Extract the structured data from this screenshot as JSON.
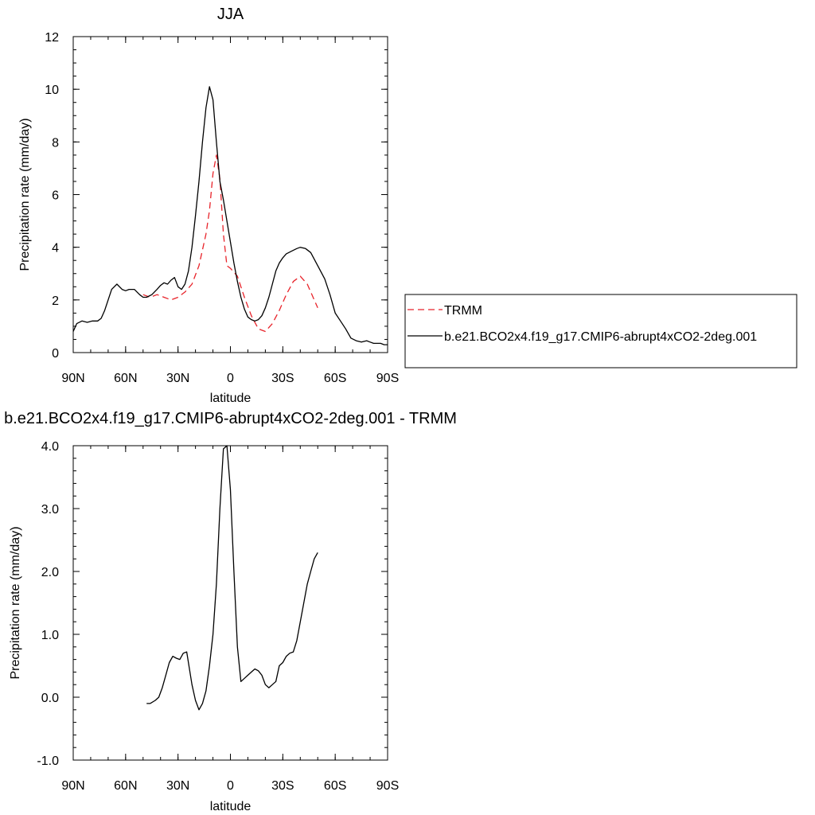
{
  "chart_data": [
    {
      "type": "line",
      "title": "JJA",
      "xlabel": "latitude",
      "ylabel": "Precipitation rate (mm/day)",
      "xlim": [
        90,
        -90
      ],
      "ylim": [
        0,
        12
      ],
      "x_ticks": [
        {
          "value": 90,
          "label": "90N"
        },
        {
          "value": 60,
          "label": "60N"
        },
        {
          "value": 30,
          "label": "30N"
        },
        {
          "value": 0,
          "label": "0"
        },
        {
          "value": -30,
          "label": "30S"
        },
        {
          "value": -60,
          "label": "60S"
        },
        {
          "value": -90,
          "label": "90S"
        }
      ],
      "y_ticks": [
        {
          "value": 0,
          "label": "0"
        },
        {
          "value": 2,
          "label": "2"
        },
        {
          "value": 4,
          "label": "4"
        },
        {
          "value": 6,
          "label": "6"
        },
        {
          "value": 8,
          "label": "8"
        },
        {
          "value": 10,
          "label": "10"
        },
        {
          "value": 12,
          "label": "12"
        }
      ],
      "legend": {
        "placement": "right",
        "entries": [
          "TRMM",
          "b.e21.BCO2x4.f19_g17.CMIP6-abrupt4xCO2-2deg.001"
        ]
      },
      "series": [
        {
          "name": "TRMM",
          "color": "#e8232a",
          "dash": "dashed",
          "x": [
            50,
            46,
            42,
            38,
            34,
            30,
            26,
            22,
            18,
            14,
            12,
            10,
            8,
            6,
            4,
            2,
            0,
            -4,
            -8,
            -12,
            -16,
            -20,
            -24,
            -28,
            -32,
            -36,
            -40,
            -44,
            -50
          ],
          "y": [
            2.2,
            2.1,
            2.2,
            2.1,
            2.0,
            2.1,
            2.3,
            2.6,
            3.3,
            4.5,
            5.4,
            6.8,
            7.5,
            6.6,
            4.5,
            3.3,
            3.2,
            2.9,
            2.1,
            1.4,
            0.9,
            0.8,
            1.1,
            1.6,
            2.2,
            2.7,
            2.9,
            2.6,
            1.7
          ]
        },
        {
          "name": "b.e21.BCO2x4.f19_g17.CMIP6-abrupt4xCO2-2deg.001",
          "color": "#000000",
          "dash": "solid",
          "x": [
            90,
            88,
            85,
            82,
            79,
            76,
            74,
            72,
            70,
            68,
            65,
            62,
            60,
            58,
            55,
            52,
            50,
            48,
            45,
            42,
            40,
            38,
            36,
            34,
            32,
            30,
            28,
            26,
            24,
            22,
            20,
            18,
            16,
            14,
            12,
            10,
            8,
            6,
            4,
            2,
            0,
            -2,
            -4,
            -6,
            -8,
            -10,
            -12,
            -14,
            -16,
            -18,
            -20,
            -22,
            -24,
            -26,
            -28,
            -30,
            -32,
            -35,
            -38,
            -40,
            -43,
            -46,
            -50,
            -54,
            -57,
            -60,
            -63,
            -66,
            -69,
            -72,
            -75,
            -78,
            -80,
            -82,
            -84,
            -86,
            -88,
            -90
          ],
          "y": [
            0.8,
            1.1,
            1.2,
            1.15,
            1.2,
            1.2,
            1.3,
            1.6,
            2.0,
            2.4,
            2.6,
            2.4,
            2.35,
            2.4,
            2.4,
            2.2,
            2.1,
            2.1,
            2.2,
            2.4,
            2.55,
            2.65,
            2.6,
            2.75,
            2.85,
            2.5,
            2.4,
            2.6,
            3.1,
            4.0,
            5.2,
            6.5,
            8.0,
            9.3,
            10.1,
            9.6,
            8.0,
            6.5,
            5.8,
            5.0,
            4.2,
            3.4,
            2.7,
            2.1,
            1.65,
            1.35,
            1.25,
            1.2,
            1.25,
            1.4,
            1.7,
            2.1,
            2.6,
            3.1,
            3.4,
            3.6,
            3.75,
            3.85,
            3.95,
            4.0,
            3.95,
            3.8,
            3.3,
            2.8,
            2.2,
            1.5,
            1.2,
            0.9,
            0.55,
            0.45,
            0.4,
            0.45,
            0.4,
            0.35,
            0.35,
            0.35,
            0.3,
            0.3
          ]
        }
      ]
    },
    {
      "type": "line",
      "title": "b.e21.BCO2x4.f19_g17.CMIP6-abrupt4xCO2-2deg.001 - TRMM",
      "xlabel": "latitude",
      "ylabel": "Precipitation rate (mm/day)",
      "xlim": [
        90,
        -90
      ],
      "ylim": [
        -1,
        4
      ],
      "x_ticks": [
        {
          "value": 90,
          "label": "90N"
        },
        {
          "value": 60,
          "label": "60N"
        },
        {
          "value": 30,
          "label": "30N"
        },
        {
          "value": 0,
          "label": "0"
        },
        {
          "value": -30,
          "label": "30S"
        },
        {
          "value": -60,
          "label": "60S"
        },
        {
          "value": -90,
          "label": "90S"
        }
      ],
      "y_ticks": [
        {
          "value": -1,
          "label": "-1.0"
        },
        {
          "value": 0,
          "label": "0.0"
        },
        {
          "value": 1,
          "label": "1.0"
        },
        {
          "value": 2,
          "label": "2.0"
        },
        {
          "value": 3,
          "label": "3.0"
        },
        {
          "value": 4,
          "label": "4.0"
        }
      ],
      "series": [
        {
          "color": "#000000",
          "dash": "solid",
          "x": [
            48,
            46,
            43,
            41,
            39,
            37,
            35,
            33,
            31,
            29,
            27,
            25,
            22,
            20,
            18,
            16,
            14,
            12,
            10,
            8,
            6,
            4,
            2,
            0,
            -2,
            -4,
            -6,
            -8,
            -10,
            -12,
            -14,
            -16,
            -18,
            -20,
            -22,
            -24,
            -26,
            -28,
            -30,
            -32,
            -34,
            -36,
            -38,
            -40,
            -42,
            -44,
            -46,
            -48,
            -50
          ],
          "y": [
            -0.1,
            -0.1,
            -0.05,
            0.0,
            0.15,
            0.35,
            0.55,
            0.65,
            0.62,
            0.6,
            0.7,
            0.72,
            0.2,
            -0.05,
            -0.2,
            -0.1,
            0.1,
            0.5,
            1.0,
            1.8,
            3.0,
            3.95,
            4.0,
            3.3,
            2.0,
            0.8,
            0.25,
            0.3,
            0.35,
            0.4,
            0.45,
            0.42,
            0.35,
            0.2,
            0.15,
            0.2,
            0.25,
            0.5,
            0.55,
            0.65,
            0.7,
            0.72,
            0.9,
            1.2,
            1.5,
            1.8,
            2.0,
            2.2,
            2.3
          ]
        }
      ]
    }
  ]
}
